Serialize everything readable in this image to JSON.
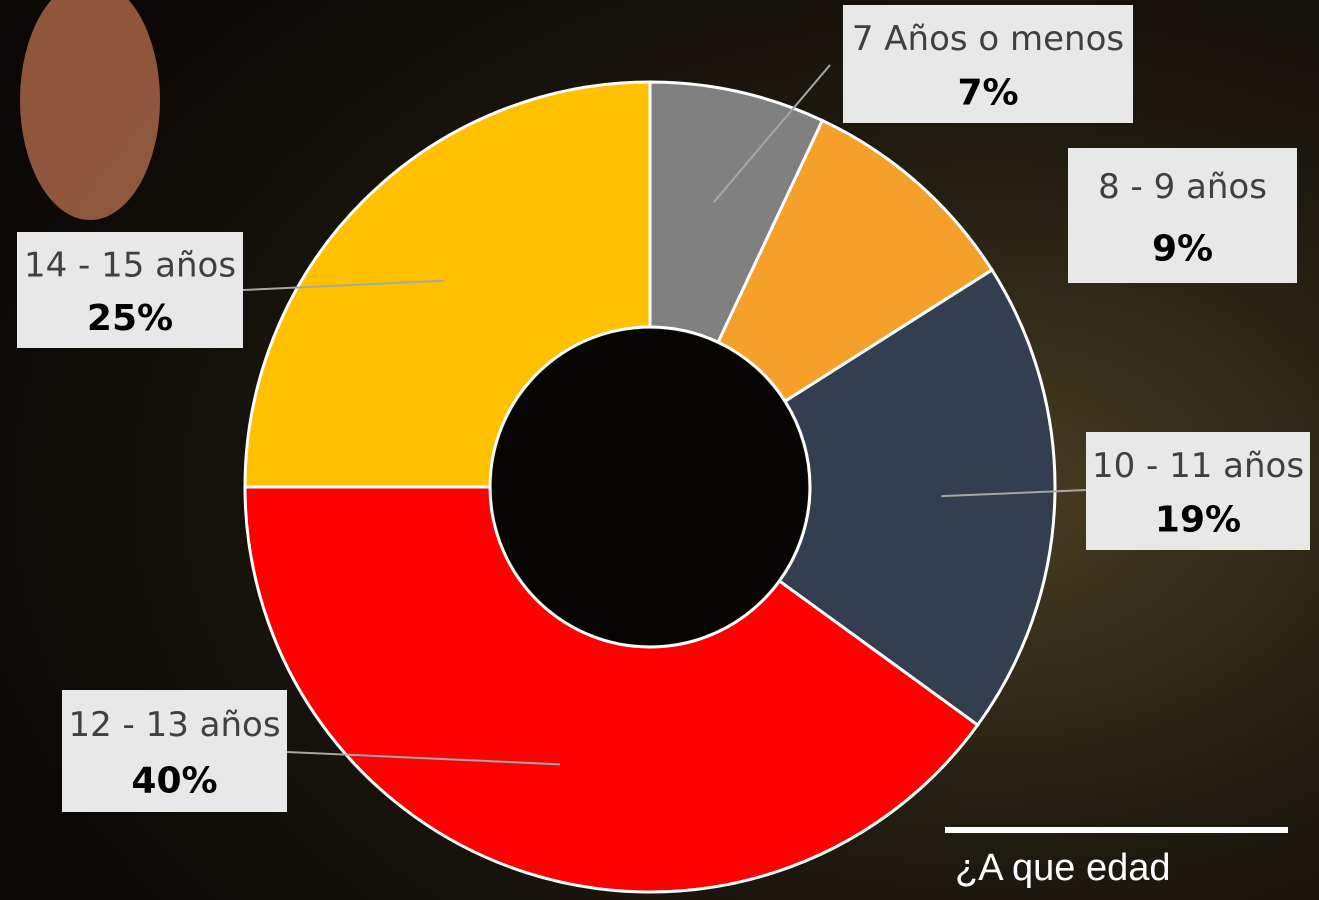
{
  "chart_data": {
    "type": "donut",
    "title": "¿A que edad",
    "categories": [
      "7 Años o menos",
      "8 - 9 años",
      "10 - 11 años",
      "12 - 13 años",
      "14 - 15 años"
    ],
    "values": [
      7,
      9,
      19,
      40,
      25
    ],
    "value_labels": [
      "7%",
      "9%",
      "19%",
      "40%",
      "25%"
    ],
    "colors": [
      "#808080",
      "#f5a02a",
      "#333f50",
      "#ff0000",
      "#ffc000"
    ]
  }
}
